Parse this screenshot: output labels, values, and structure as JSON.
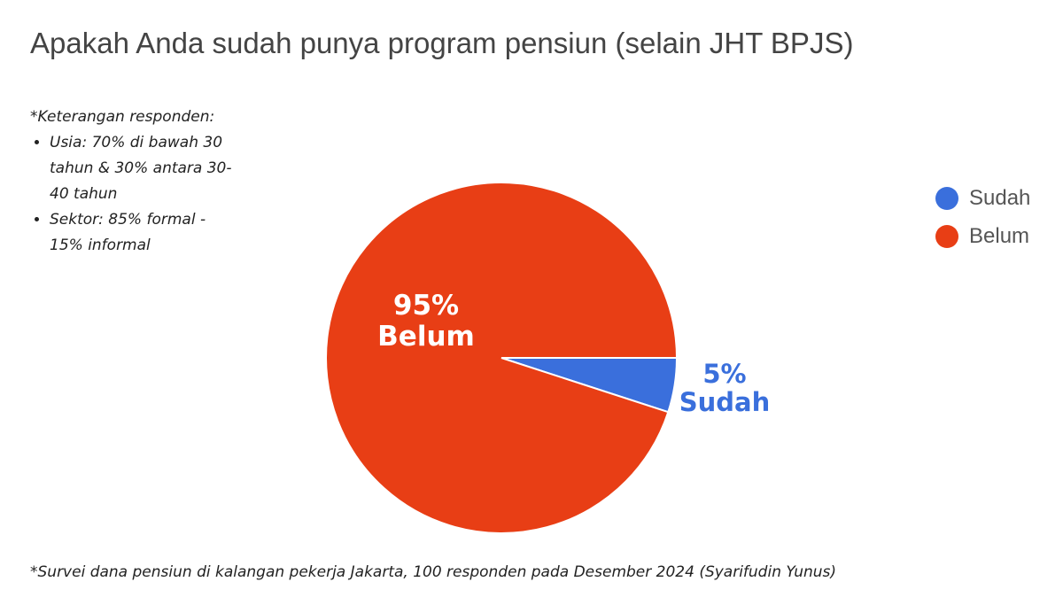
{
  "chart_data": {
    "type": "pie",
    "title": "Apakah Anda sudah punya program pensiun (selain JHT BPJS)",
    "categories": [
      "Sudah",
      "Belum"
    ],
    "values": [
      5,
      95
    ],
    "unit": "%",
    "colors": [
      "#3a6fdc",
      "#e83e15"
    ],
    "labels": [
      {
        "percent": "5%",
        "name": "Sudah"
      },
      {
        "percent": "95%",
        "name": "Belum"
      }
    ],
    "legend_placement": "right",
    "legend": [
      "Sudah",
      "Belum"
    ]
  },
  "note": {
    "heading": "*Keterangan responden:",
    "items": [
      "Usia: 70% di bawah 30 tahun & 30% antara 30-40 tahun",
      "Sektor: 85% formal - 15% informal"
    ]
  },
  "footnote": "*Survei dana pensiun di kalangan pekerja Jakarta, 100 responden pada Desember 2024 (Syarifudin Yunus)",
  "highlight_color": "#ee3a3a"
}
